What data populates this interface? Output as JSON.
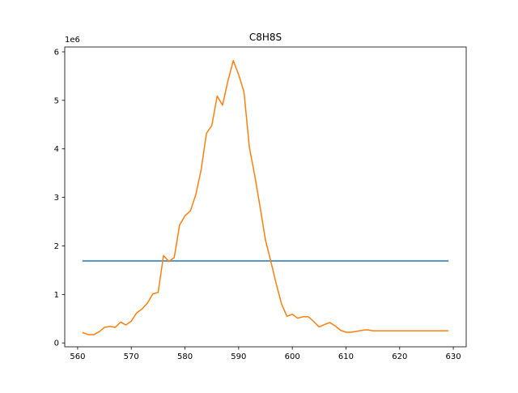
{
  "chart_data": {
    "type": "line",
    "title": "C8H8S",
    "xlabel": "",
    "ylabel": "",
    "y_offset_label": "1e6",
    "xlim": [
      557.6,
      632.4
    ],
    "ylim": [
      -0.08,
      6.1
    ],
    "x_ticks": [
      560,
      570,
      580,
      590,
      600,
      610,
      620,
      630
    ],
    "y_ticks": [
      0,
      1,
      2,
      3,
      4,
      5,
      6
    ],
    "grid": false,
    "series": [
      {
        "color": "#1f77b4",
        "x": [
          561,
          629
        ],
        "y": [
          1.69,
          1.69
        ]
      },
      {
        "color": "#ff7f0e",
        "x": [
          561,
          562,
          563,
          564,
          565,
          566,
          567,
          568,
          569,
          570,
          571,
          572,
          573,
          574,
          575,
          576,
          577,
          578,
          579,
          580,
          581,
          582,
          583,
          584,
          585,
          586,
          587,
          588,
          589,
          590,
          591,
          592,
          593,
          594,
          595,
          596,
          597,
          598,
          599,
          600,
          601,
          602,
          603,
          604,
          605,
          606,
          607,
          608,
          609,
          610,
          611,
          612,
          613,
          614,
          615,
          616,
          617,
          618,
          619,
          620,
          621,
          622,
          623,
          624,
          625,
          626,
          627,
          628,
          629
        ],
        "y": [
          0.21,
          0.17,
          0.17,
          0.23,
          0.32,
          0.34,
          0.32,
          0.43,
          0.37,
          0.45,
          0.62,
          0.7,
          0.82,
          1.01,
          1.04,
          1.8,
          1.68,
          1.76,
          2.43,
          2.62,
          2.72,
          3.05,
          3.56,
          4.32,
          4.48,
          5.09,
          4.9,
          5.4,
          5.82,
          5.53,
          5.17,
          4.03,
          3.45,
          2.8,
          2.12,
          1.68,
          1.22,
          0.8,
          0.55,
          0.59,
          0.51,
          0.54,
          0.54,
          0.44,
          0.33,
          0.38,
          0.42,
          0.35,
          0.26,
          0.22,
          0.22,
          0.24,
          0.26,
          0.27,
          0.25,
          0.25,
          0.25,
          0.25,
          0.25,
          0.25,
          0.25,
          0.25,
          0.25,
          0.25,
          0.25,
          0.25,
          0.25,
          0.25,
          0.25
        ]
      }
    ]
  }
}
